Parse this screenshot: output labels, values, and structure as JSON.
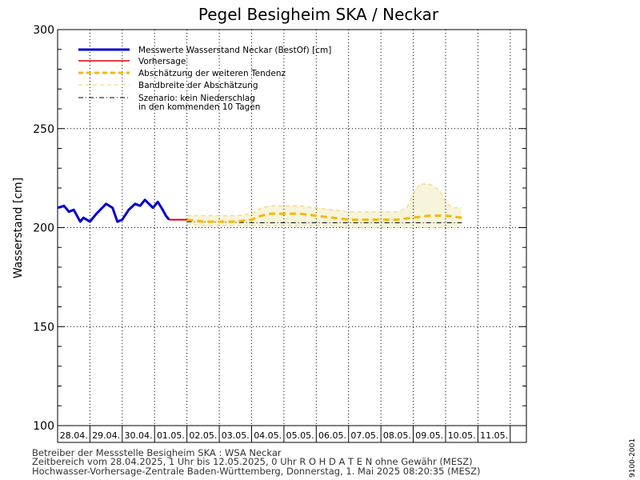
{
  "header": {
    "title": "Pegel Besigheim SKA / Neckar",
    "side_code": "9100-2001"
  },
  "chart_data": {
    "type": "line",
    "title": "Pegel Besigheim SKA / Neckar",
    "xlabel": "",
    "ylabel": "Wasserstand [cm]",
    "ylim": [
      100,
      300
    ],
    "yticks": [
      100,
      150,
      200,
      250,
      300
    ],
    "xlim": [
      0,
      14.5
    ],
    "x_unit": "days since 28.04.2025 00:00",
    "categories": [
      "28.04.",
      "29.04.",
      "30.04.",
      "01.05.",
      "02.05.",
      "03.05.",
      "04.05.",
      "05.05.",
      "06.05.",
      "07.05.",
      "08.05.",
      "09.05.",
      "10.05.",
      "11.05."
    ],
    "grid": true,
    "legend_position": "top-left",
    "legend": [
      {
        "key": "measured",
        "label": "Messwerte Wasserstand Neckar (BestOf)  [cm]"
      },
      {
        "key": "forecast",
        "label": "Vorhersage"
      },
      {
        "key": "trend",
        "label": "Abschätzung der weiteren Tendenz"
      },
      {
        "key": "band",
        "label": "Bandbreite der Abschätzung"
      },
      {
        "key": "scenario",
        "label": "Szenario: kein Niederschlag\nin den kommenden 10 Tagen"
      }
    ],
    "series": [
      {
        "key": "measured",
        "name": "Messwerte Wasserstand Neckar (BestOf)  [cm]",
        "color": "#0000cc",
        "x": [
          0.0,
          0.2,
          0.35,
          0.5,
          0.7,
          0.8,
          0.9,
          1.0,
          1.2,
          1.5,
          1.7,
          1.85,
          2.0,
          2.2,
          2.4,
          2.55,
          2.7,
          2.95,
          3.1,
          3.25,
          3.35,
          3.45
        ],
        "y": [
          210,
          211,
          208,
          209,
          203,
          205,
          204,
          203,
          207,
          212,
          210,
          203,
          204,
          209,
          212,
          211,
          214,
          210,
          213,
          209,
          206,
          204
        ]
      },
      {
        "key": "forecast",
        "name": "Vorhersage",
        "color": "#dd0000",
        "x": [
          3.45,
          3.7,
          4.0
        ],
        "y": [
          204,
          204,
          204
        ]
      },
      {
        "key": "trend",
        "name": "Abschätzung der weiteren Tendenz",
        "color": "#f5b800",
        "x": [
          4.0,
          4.5,
          5.0,
          5.5,
          6.0,
          6.3,
          6.6,
          7.0,
          7.5,
          8.0,
          8.5,
          9.0,
          9.5,
          10.0,
          10.5,
          11.0,
          11.5,
          12.0,
          12.5
        ],
        "y": [
          204,
          203,
          203,
          203,
          204,
          206,
          207,
          207,
          207,
          206,
          205,
          204,
          204,
          204,
          204,
          205,
          206,
          206,
          205
        ]
      },
      {
        "key": "band_upper",
        "name": "Bandbreite der Abschätzung",
        "color": "#f5d060",
        "x": [
          4.0,
          4.5,
          5.0,
          5.5,
          6.0,
          6.3,
          6.6,
          7.0,
          7.5,
          8.0,
          8.5,
          9.0,
          9.5,
          10.0,
          10.5,
          10.8,
          11.0,
          11.2,
          11.5,
          11.8,
          12.0,
          12.2,
          12.5
        ],
        "y": [
          206,
          206,
          206,
          206,
          207,
          210,
          211,
          211,
          211,
          210,
          209,
          208,
          208,
          208,
          208,
          210,
          217,
          222,
          222,
          219,
          213,
          210,
          210
        ]
      },
      {
        "key": "band_lower",
        "name": "Bandbreite der Abschätzung",
        "color": "#f5d060",
        "x": [
          4.0,
          4.5,
          5.0,
          5.5,
          6.0,
          6.3,
          6.6,
          7.0,
          7.5,
          8.0,
          8.5,
          9.0,
          9.5,
          10.0,
          10.5,
          11.0,
          11.5,
          12.0,
          12.5
        ],
        "y": [
          202,
          201,
          201,
          201,
          201,
          201,
          201,
          201,
          201,
          201,
          201,
          200,
          200,
          200,
          200,
          200,
          200,
          200,
          200
        ]
      },
      {
        "key": "scenario",
        "name": "Szenario: kein Niederschlag in den kommenden 10 Tagen",
        "color": "#000000",
        "x": [
          4.0,
          6.0,
          8.0,
          10.0,
          12.5
        ],
        "y": [
          203,
          202.5,
          202.5,
          202.5,
          202.5
        ]
      }
    ]
  },
  "footer": {
    "line1": "Betreiber der Messstelle Besigheim SKA : WSA Neckar",
    "line2": "Zeitbereich vom 28.04.2025, 1 Uhr bis 12.05.2025, 0 Uhr    R O H D A T E N ohne Gewähr (MESZ)",
    "line3": "Hochwasser-Vorhersage-Zentrale Baden-Württemberg, Donnerstag, 1. Mai 2025 08:20:35 (MESZ)"
  }
}
